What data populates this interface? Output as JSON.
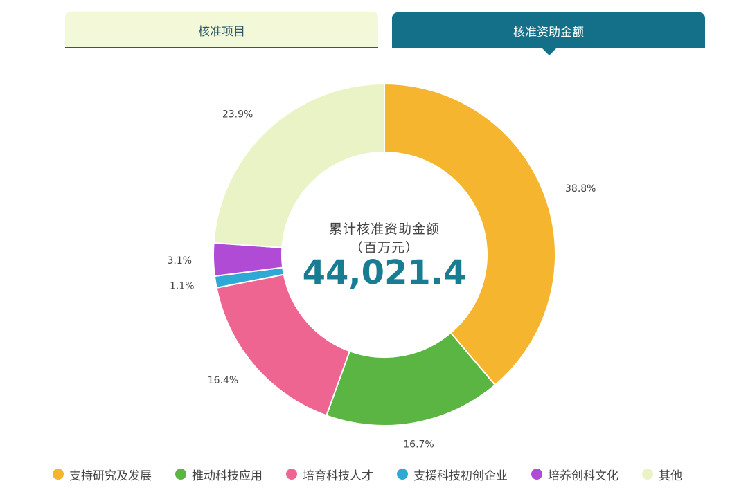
{
  "tabs": [
    {
      "label": "核准项目",
      "active": false
    },
    {
      "label": "核准资助金额",
      "active": true
    }
  ],
  "center": {
    "title": "累计核准资助金额",
    "unit": "（百万元）",
    "value": "44,021.4"
  },
  "chart_data": {
    "type": "pie",
    "donut": true,
    "title": "",
    "total": "44,021.4",
    "labels": [
      "支持研究及发展",
      "推动科技应用",
      "培育科技人才",
      "支援科技初创企业",
      "培养创科文化",
      "其他"
    ],
    "values": [
      38.8,
      16.7,
      16.4,
      1.1,
      3.1,
      23.9
    ],
    "value_labels": [
      "38.8%",
      "16.7%",
      "16.4%",
      "1.1%",
      "3.1%",
      "23.9%"
    ],
    "colors": [
      "#f5b52e",
      "#5bb543",
      "#ef6592",
      "#2ea9d4",
      "#b04bd6",
      "#eaf3c6"
    ],
    "legend": "bottom"
  }
}
